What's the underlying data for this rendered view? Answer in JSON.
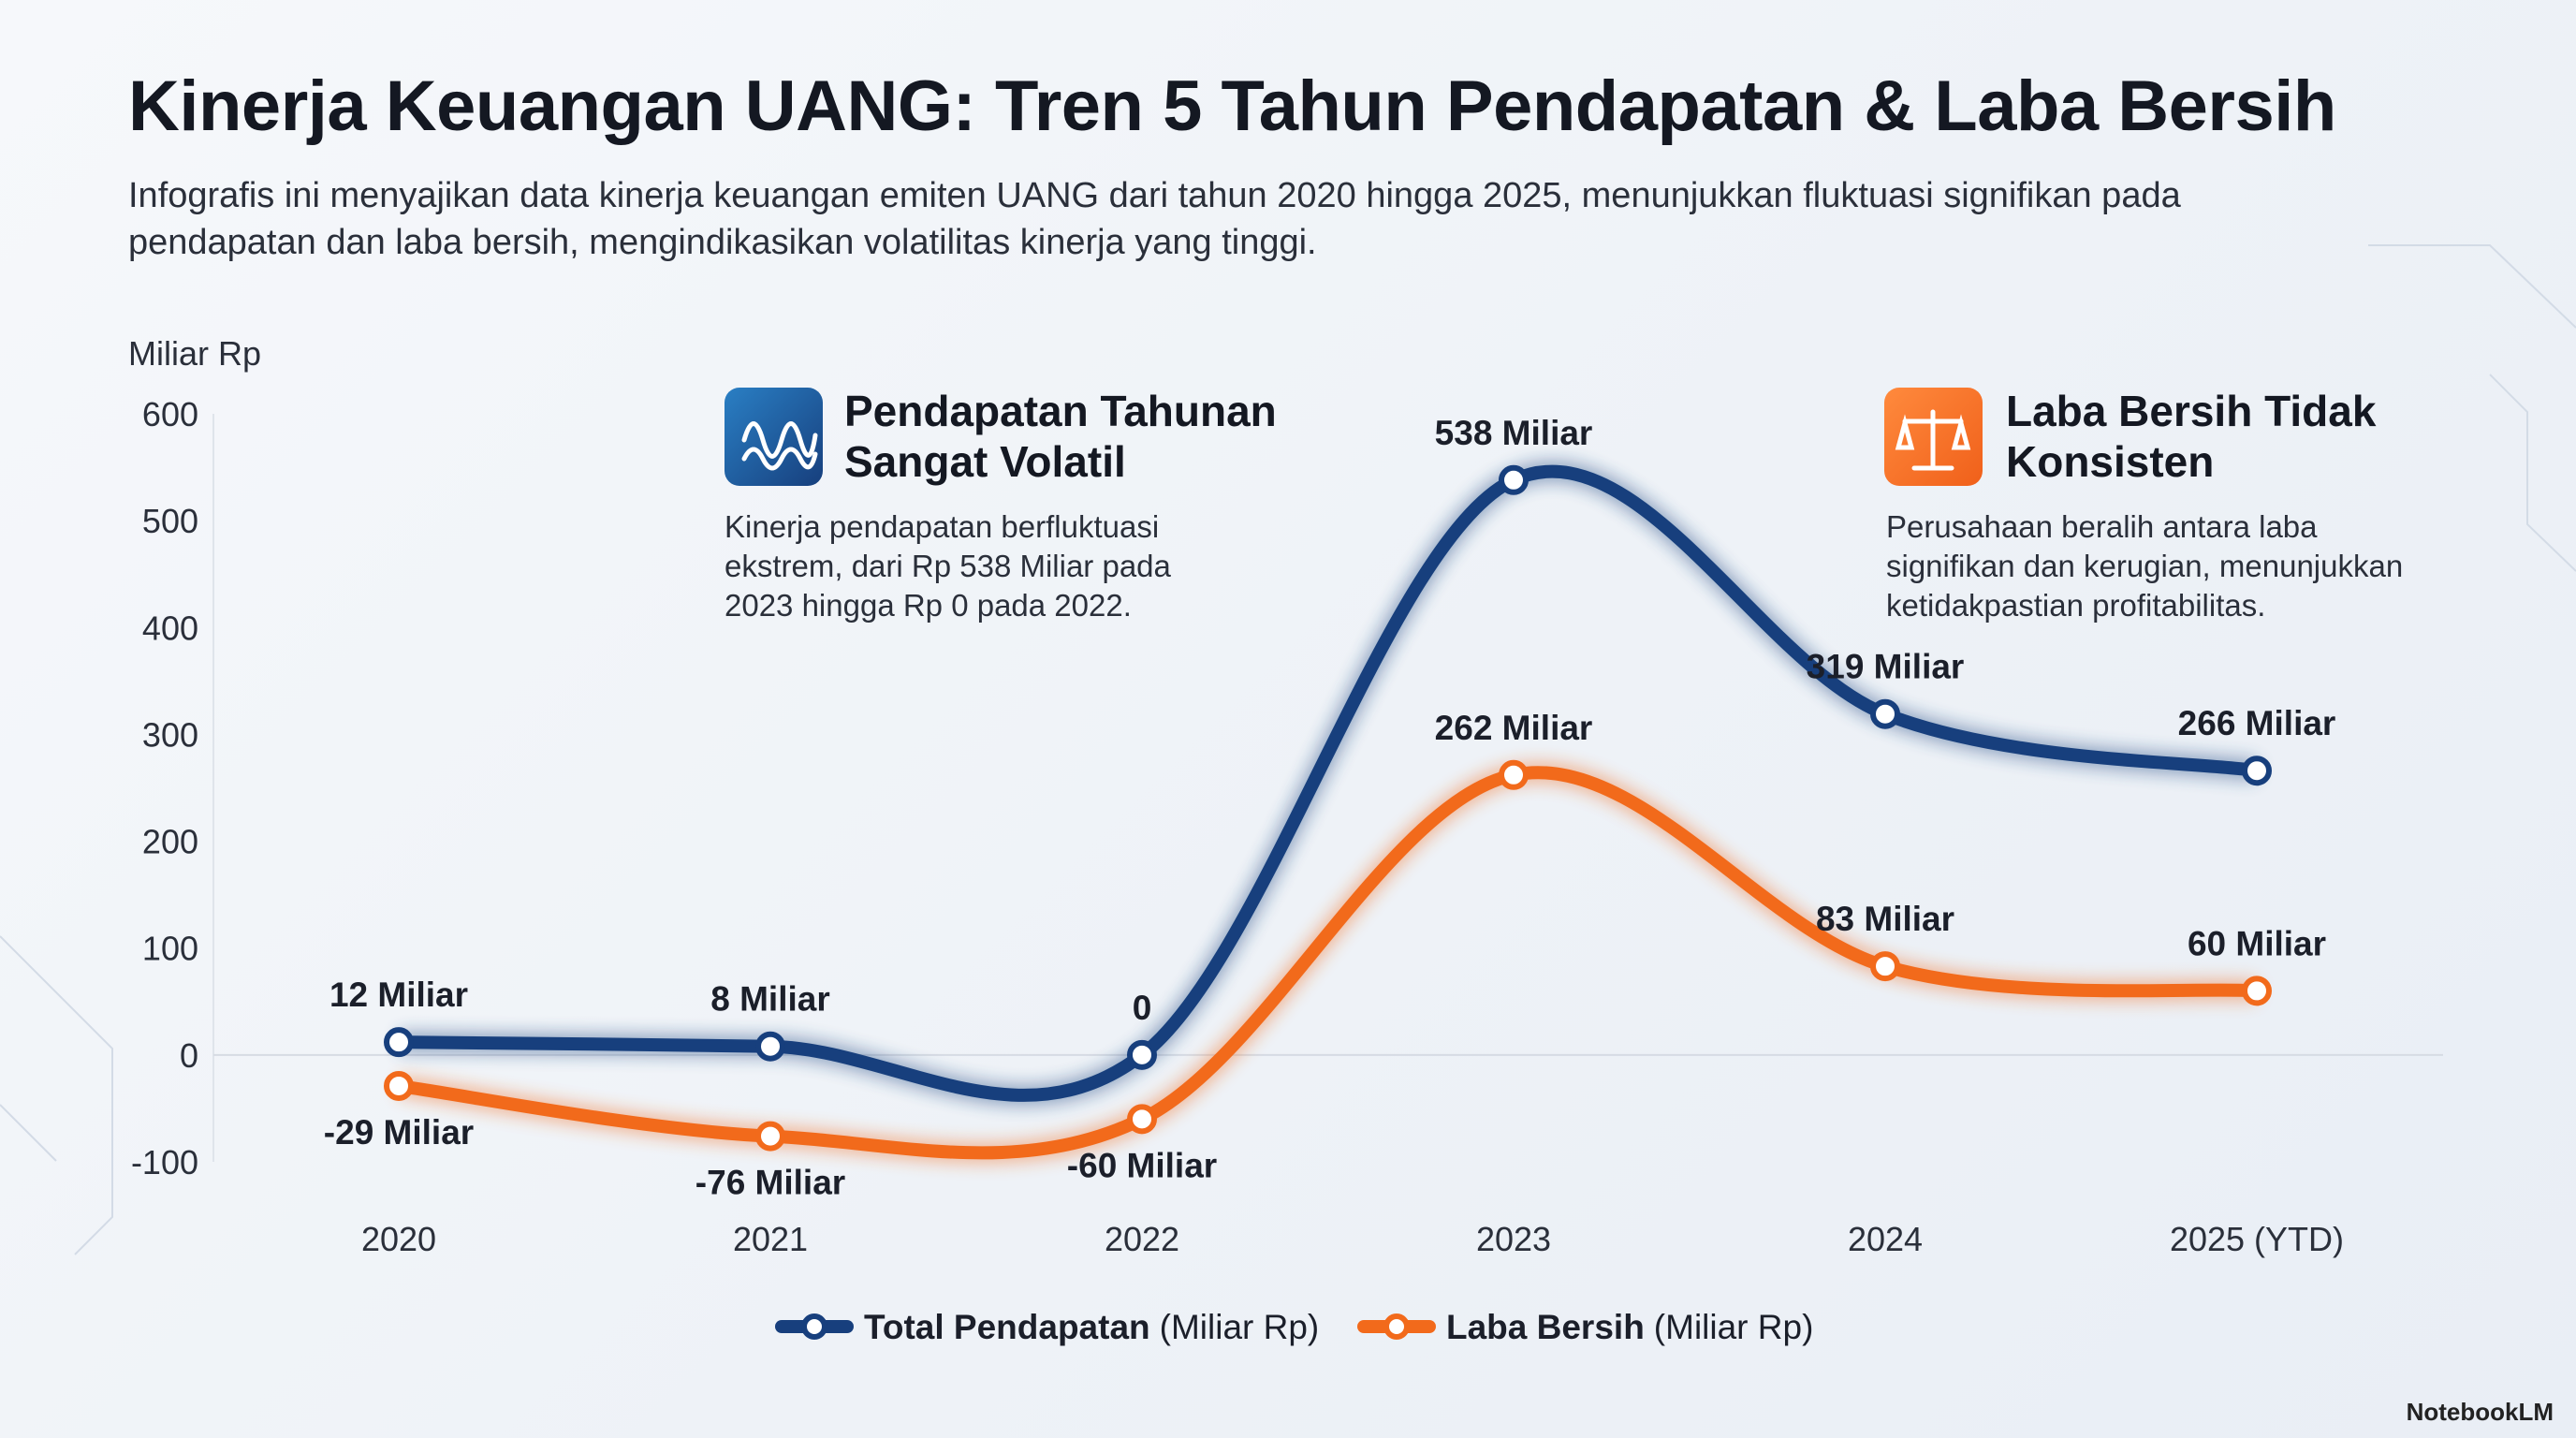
{
  "title": "Kinerja Keuangan UANG: Tren 5 Tahun Pendapatan & Laba Bersih",
  "subtitle": "Infografis ini menyajikan data kinerja keuangan emiten UANG dari tahun 2020 hingga 2025, menunjukkan fluktuasi signifikan pada pendapatan dan laba bersih, mengindikasikan volatilitas kinerja yang tinggi.",
  "watermark": "NotebookLM",
  "chart_data": {
    "type": "line",
    "y_label": "Miliar Rp",
    "categories": [
      "2020",
      "2021",
      "2022",
      "2023",
      "2024",
      "2025 (YTD)"
    ],
    "series": [
      {
        "name": "Total Pendapatan",
        "unit": "(Miliar Rp)",
        "color": "#173f7d",
        "values": [
          12,
          8,
          0,
          538,
          319,
          266
        ],
        "value_labels": [
          "12 Miliar",
          "8 Miliar",
          "0",
          "538 Miliar",
          "319 Miliar",
          "266 Miliar"
        ]
      },
      {
        "name": "Laba Bersih",
        "unit": "(Miliar Rp)",
        "color": "#f26a1b",
        "values": [
          -29,
          -76,
          -60,
          262,
          83,
          60
        ],
        "value_labels": [
          "-29 Miliar",
          "-76 Miliar",
          "-60 Miliar",
          "262 Miliar",
          "83 Miliar",
          "60 Miliar"
        ]
      }
    ],
    "ylim": [
      -100,
      600
    ],
    "yticks": [
      -100,
      0,
      100,
      200,
      300,
      400,
      500,
      600
    ],
    "grid": false,
    "legend": "bottom",
    "annotations": [
      {
        "title": "Pendapatan Tahunan Sangat Volatil",
        "text": "Kinerja pendapatan berfluktuasi ekstrem, dari Rp 538 Miliar pada 2023 hingga Rp 0 pada 2022."
      },
      {
        "title": "Laba Bersih Tidak Konsisten",
        "text": "Perusahaan beralih antara laba signifikan dan kerugian, menunjukkan ketidakpastian profitabilitas."
      }
    ]
  }
}
